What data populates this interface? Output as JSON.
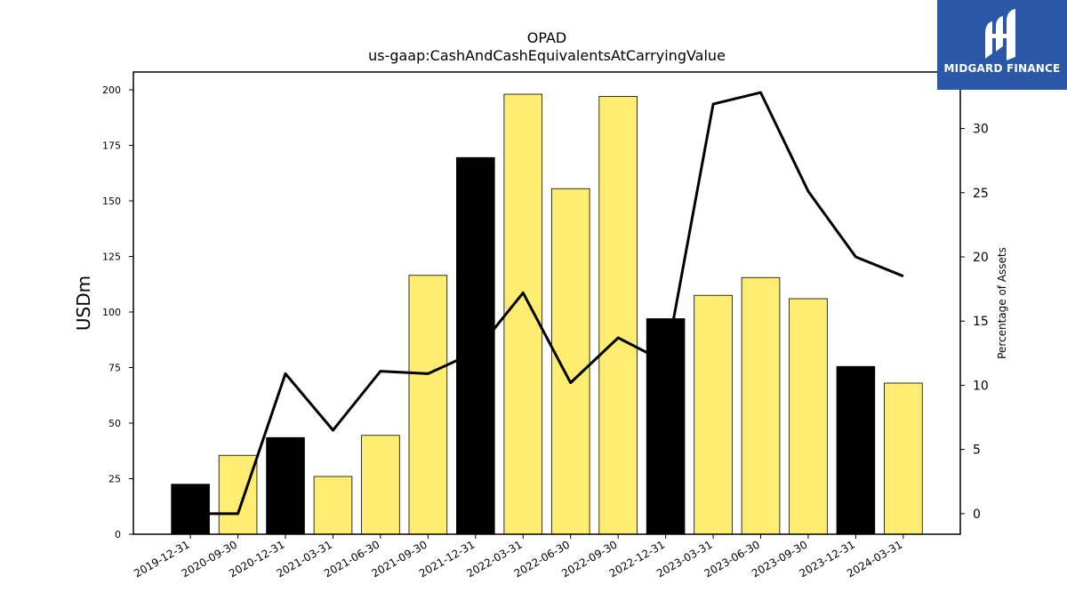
{
  "colors": {
    "highlight": "#000000",
    "normal": "#feed70",
    "line": "#000000",
    "logo_bg": "#2b58a6"
  },
  "logo": {
    "text": "MIDGARD FINANCE",
    "icon": "midgard-logo-icon"
  },
  "chart_data": {
    "type": "bar",
    "title": "OPAD",
    "subtitle": "us-gaap:CashAndCashEquivalentsAtCarryingValue",
    "ylabel": "USDm",
    "y2label": "Percentage of Assets",
    "ylim": [
      0,
      208
    ],
    "y2lim": [
      -1.6,
      34.4
    ],
    "yticks": [
      0,
      25,
      50,
      75,
      100,
      125,
      150,
      175,
      200
    ],
    "y2ticks": [
      0,
      5,
      10,
      15,
      20,
      25,
      30
    ],
    "categories": [
      "2019-12-31",
      "2020-09-30",
      "2020-12-31",
      "2021-03-31",
      "2021-06-30",
      "2021-09-30",
      "2021-12-31",
      "2022-03-31",
      "2022-06-30",
      "2022-09-30",
      "2022-12-31",
      "2023-03-31",
      "2023-06-30",
      "2023-09-30",
      "2023-12-31",
      "2024-03-31"
    ],
    "series": [
      {
        "values": [
          22.5,
          35.5,
          43.5,
          26,
          44.5,
          116.5,
          169.5,
          198,
          155.5,
          197,
          97,
          107.5,
          115.5,
          106,
          75.5,
          68
        ]
      },
      {
        "axis": "right",
        "values": [
          0,
          0,
          10.9,
          6.5,
          11.1,
          10.9,
          12.6,
          17.2,
          10.2,
          13.7,
          11.8,
          31.9,
          32.8,
          25.1,
          20.0,
          18.5
        ]
      }
    ],
    "highlight": [
      true,
      false,
      true,
      false,
      false,
      false,
      true,
      false,
      false,
      false,
      true,
      false,
      false,
      false,
      true,
      false
    ],
    "grid": false
  }
}
